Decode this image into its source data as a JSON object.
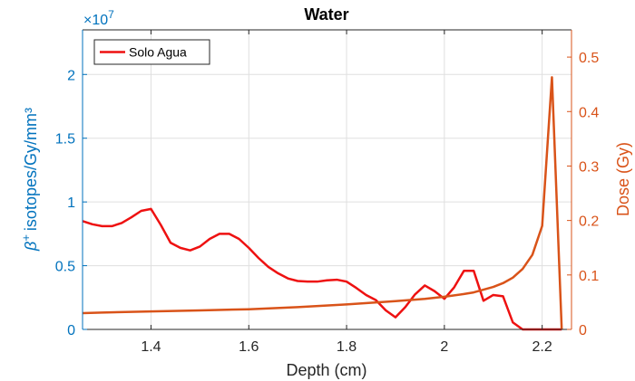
{
  "chart_data": {
    "type": "line",
    "title": "Water",
    "xlabel": "Depth (cm)",
    "ylabel_left_super": "+",
    "ylabel_left": "isotopes/Gy/mm³",
    "ylabel_left_symbol": "β",
    "ylabel_right": "Dose (Gy)",
    "left_axis_multiplier_base": "×10",
    "left_axis_multiplier_exp": "7",
    "xlim": [
      1.26,
      2.26
    ],
    "ylim_left": [
      0,
      23500000
    ],
    "ylim_right": [
      0,
      0.55
    ],
    "x_ticks": [
      1.4,
      1.6,
      1.8,
      2.0,
      2.2
    ],
    "x_tick_labels": [
      "1.4",
      "1.6",
      "1.8",
      "2",
      "2.2"
    ],
    "y_left_ticks": [
      0,
      5000000,
      10000000,
      15000000,
      20000000
    ],
    "y_left_tick_labels": [
      "0",
      "0.5",
      "1",
      "1.5",
      "2"
    ],
    "y_right_ticks": [
      0,
      0.1,
      0.2,
      0.3,
      0.4,
      0.5
    ],
    "y_right_tick_labels": [
      "0",
      "0.1",
      "0.2",
      "0.3",
      "0.4",
      "0.5"
    ],
    "grid": true,
    "legend": {
      "placement": "top-left",
      "entries": [
        "Solo Agua"
      ]
    },
    "colors": {
      "left_axis": "#0072bd",
      "right_axis": "#d95319",
      "isotopes_line": "#ee1111",
      "dose_line": "#d95319"
    },
    "series": [
      {
        "name": "Solo Agua",
        "axis": "left",
        "x": [
          1.26,
          1.28,
          1.3,
          1.32,
          1.34,
          1.36,
          1.38,
          1.4,
          1.42,
          1.44,
          1.46,
          1.48,
          1.5,
          1.52,
          1.54,
          1.56,
          1.58,
          1.6,
          1.62,
          1.64,
          1.66,
          1.68,
          1.7,
          1.72,
          1.74,
          1.76,
          1.78,
          1.8,
          1.82,
          1.84,
          1.86,
          1.88,
          1.9,
          1.92,
          1.94,
          1.96,
          1.98,
          2.0,
          2.02,
          2.04,
          2.06,
          2.08,
          2.1,
          2.12,
          2.14,
          2.16,
          2.18,
          2.2,
          2.22,
          2.24
        ],
        "y": [
          8500000,
          8250000,
          8100000,
          8100000,
          8350000,
          8800000,
          9300000,
          9450000,
          8200000,
          6800000,
          6400000,
          6200000,
          6500000,
          7100000,
          7500000,
          7500000,
          7100000,
          6400000,
          5600000,
          4900000,
          4400000,
          4000000,
          3800000,
          3750000,
          3750000,
          3850000,
          3900000,
          3750000,
          3250000,
          2700000,
          2300000,
          1500000,
          950000,
          1750000,
          2750000,
          3450000,
          3000000,
          2400000,
          3300000,
          4600000,
          4600000,
          2250000,
          2700000,
          2600000,
          550000,
          0,
          0,
          0,
          0,
          0
        ]
      },
      {
        "name": "",
        "axis": "right",
        "x": [
          1.26,
          1.3,
          1.4,
          1.5,
          1.6,
          1.7,
          1.8,
          1.9,
          1.96,
          2.0,
          2.04,
          2.06,
          2.08,
          2.1,
          2.12,
          2.14,
          2.16,
          2.18,
          2.2,
          2.22,
          2.24
        ],
        "y": [
          0.03,
          0.031,
          0.033,
          0.035,
          0.037,
          0.041,
          0.046,
          0.052,
          0.056,
          0.06,
          0.065,
          0.068,
          0.073,
          0.078,
          0.085,
          0.095,
          0.111,
          0.137,
          0.19,
          0.463,
          0.0
        ]
      }
    ]
  }
}
